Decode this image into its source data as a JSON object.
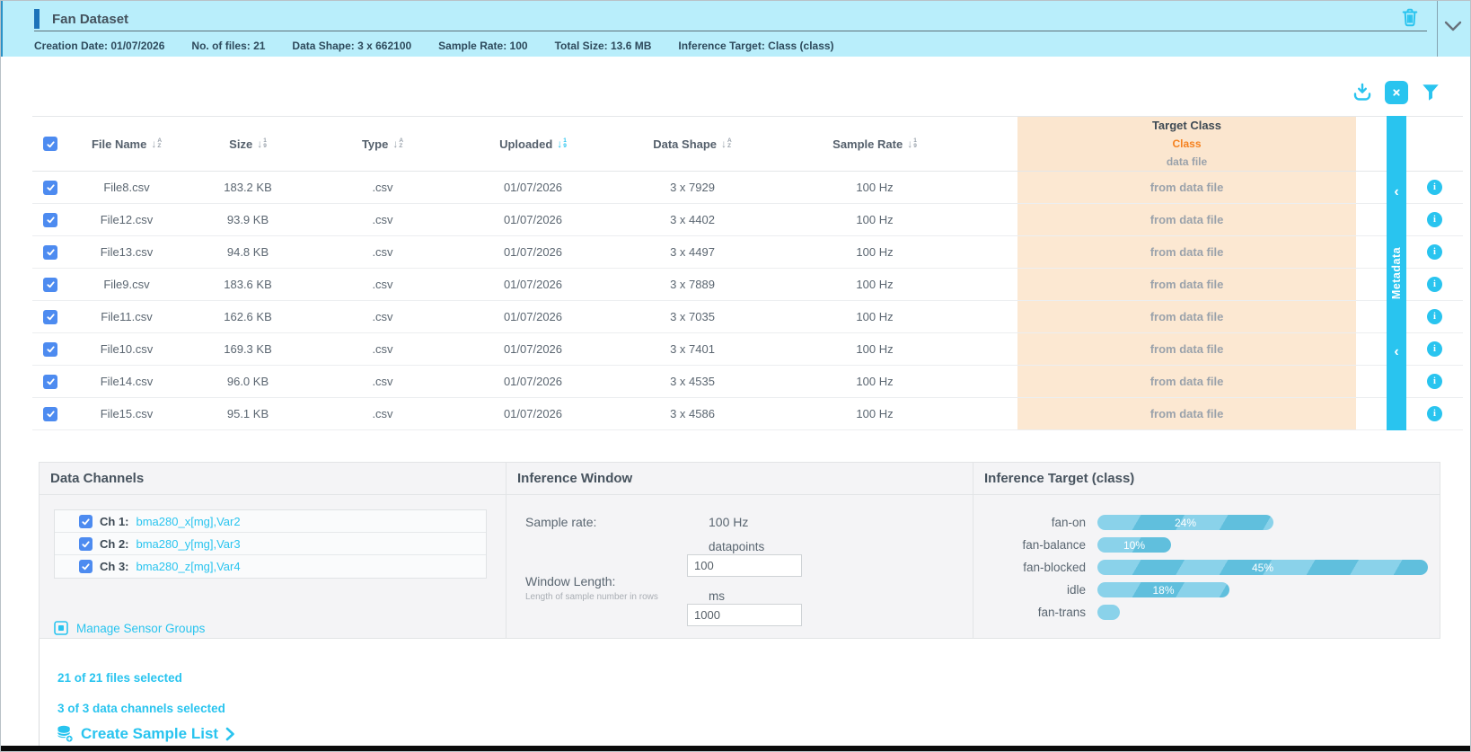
{
  "header": {
    "title": "Fan Dataset",
    "meta": [
      "Creation Date: 01/07/2026",
      "No. of files: 21",
      "Data Shape: 3 x 662100",
      "Sample Rate: 100",
      "Total Size: 13.6 MB",
      "Inference Target: Class (class)"
    ]
  },
  "icons": {
    "sort_alpha_letters": [
      "A",
      "Z"
    ],
    "sort_numeric_letters": [
      "1",
      "9"
    ],
    "strip_chevron": "‹"
  },
  "table": {
    "columns": [
      {
        "label": "File Name",
        "sort": "alpha",
        "active": false
      },
      {
        "label": "Size",
        "sort": "numeric",
        "active": false
      },
      {
        "label": "Type",
        "sort": "alpha",
        "active": false
      },
      {
        "label": "Uploaded",
        "sort": "numeric",
        "active": true
      },
      {
        "label": "Data Shape",
        "sort": "alpha",
        "active": false
      },
      {
        "label": "Sample Rate",
        "sort": "numeric",
        "active": false
      }
    ],
    "target_header": {
      "line1": "Target Class",
      "line2": "Class",
      "line3": "data file"
    },
    "metadata_tab": "Metadata",
    "rows": [
      {
        "name": "File8.csv",
        "size": "183.2 KB",
        "type": ".csv",
        "uploaded": "01/07/2026",
        "shape": "3 x 7929",
        "rate": "100 Hz",
        "target": "from data file",
        "checked": true
      },
      {
        "name": "File12.csv",
        "size": "93.9 KB",
        "type": ".csv",
        "uploaded": "01/07/2026",
        "shape": "3 x 4402",
        "rate": "100 Hz",
        "target": "from data file",
        "checked": true
      },
      {
        "name": "File13.csv",
        "size": "94.8 KB",
        "type": ".csv",
        "uploaded": "01/07/2026",
        "shape": "3 x 4497",
        "rate": "100 Hz",
        "target": "from data file",
        "checked": true
      },
      {
        "name": "File9.csv",
        "size": "183.6 KB",
        "type": ".csv",
        "uploaded": "01/07/2026",
        "shape": "3 x 7889",
        "rate": "100 Hz",
        "target": "from data file",
        "checked": true
      },
      {
        "name": "File11.csv",
        "size": "162.6 KB",
        "type": ".csv",
        "uploaded": "01/07/2026",
        "shape": "3 x 7035",
        "rate": "100 Hz",
        "target": "from data file",
        "checked": true
      },
      {
        "name": "File10.csv",
        "size": "169.3 KB",
        "type": ".csv",
        "uploaded": "01/07/2026",
        "shape": "3 x 7401",
        "rate": "100 Hz",
        "target": "from data file",
        "checked": true
      },
      {
        "name": "File14.csv",
        "size": "96.0 KB",
        "type": ".csv",
        "uploaded": "01/07/2026",
        "shape": "3 x 4535",
        "rate": "100 Hz",
        "target": "from data file",
        "checked": true
      },
      {
        "name": "File15.csv",
        "size": "95.1 KB",
        "type": ".csv",
        "uploaded": "01/07/2026",
        "shape": "3 x 4586",
        "rate": "100 Hz",
        "target": "from data file",
        "checked": true
      }
    ]
  },
  "channels": {
    "title": "Data Channels",
    "items": [
      {
        "label": "Ch 1:",
        "value": "bma280_x[mg],Var2",
        "checked": true
      },
      {
        "label": "Ch 2:",
        "value": "bma280_y[mg],Var3",
        "checked": true
      },
      {
        "label": "Ch 3:",
        "value": "bma280_z[mg],Var4",
        "checked": true
      }
    ],
    "manage_label": "Manage Sensor Groups"
  },
  "inference_window": {
    "title": "Inference Window",
    "sample_rate_label": "Sample rate:",
    "sample_rate_value": "100 Hz",
    "window_length_label": "Window Length:",
    "window_length_hint": "Length of sample number in rows",
    "datapoints_label": "datapoints",
    "datapoints_value": "100",
    "ms_label": "ms",
    "ms_value": "1000"
  },
  "chart_data": {
    "type": "bar",
    "orientation": "horizontal",
    "title": "Inference Target (class)",
    "categories": [
      "fan-on",
      "fan-balance",
      "fan-blocked",
      "idle",
      "fan-trans"
    ],
    "values": [
      24,
      10,
      45,
      18,
      3
    ],
    "unit": "%",
    "xlabel": "",
    "ylabel": "",
    "xlim": [
      0,
      46
    ],
    "bar_labels": [
      "24%",
      "10%",
      "45%",
      "18%",
      ""
    ]
  },
  "status": {
    "files_selected": "21 of 21 files selected",
    "channels_selected": "3 of 3 data channels selected",
    "create_label": "Create Sample List"
  },
  "colors": {
    "accent": "#29c4ef",
    "header_bg": "#b9eefb",
    "checkbox": "#4d8bf0",
    "orange": "#f58220",
    "peach": "#fce8d2",
    "peach_head": "#fbe6cf",
    "bar1": "#8ad2ea",
    "bar2": "#60bfdd"
  }
}
